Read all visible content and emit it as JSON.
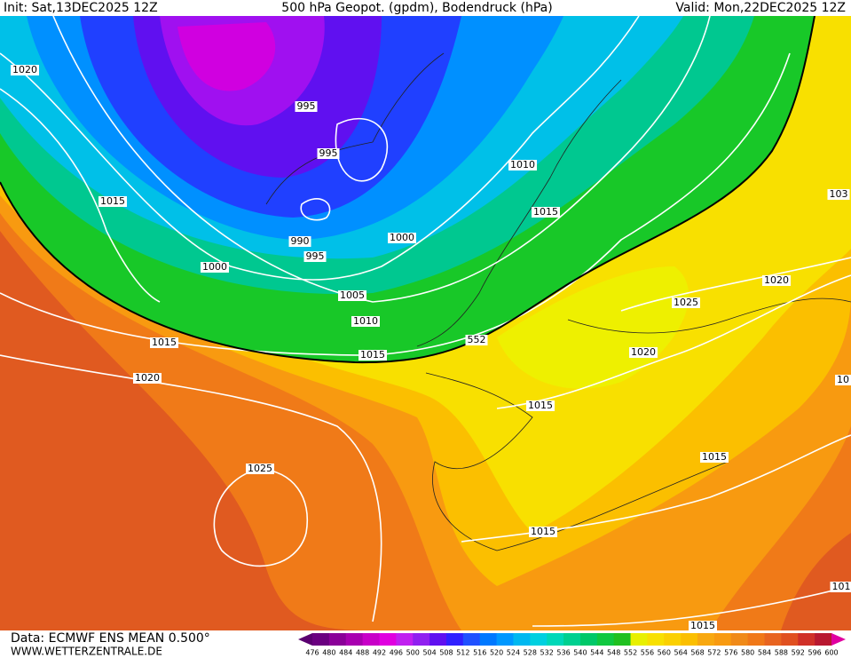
{
  "header": {
    "init": "Init: Sat,13DEC2025 12Z",
    "title": "500 hPa Geopot. (gpdm), Bodendruck (hPa)",
    "valid": "Valid: Mon,22DEC2025 12Z"
  },
  "footer": {
    "data": "Data: ECMWF ENS MEAN 0.500°",
    "site": "WWW.WETTERZENTRALE.DE"
  },
  "isobar_labels": [
    "1020",
    "1015",
    "995",
    "995",
    "990",
    "995",
    "1000",
    "1000",
    "1010",
    "1015",
    "1005",
    "1010",
    "1015",
    "1015",
    "552",
    "1020",
    "1025",
    "1015",
    "1020",
    "1025",
    "1020",
    "1015",
    "1015",
    "1015",
    "103",
    "10",
    "101"
  ],
  "colorbar": {
    "labels": [
      476,
      480,
      484,
      488,
      492,
      496,
      500,
      504,
      508,
      512,
      516,
      520,
      524,
      528,
      532,
      536,
      540,
      544,
      548,
      552,
      556,
      560,
      564,
      568,
      572,
      576,
      580,
      584,
      588,
      592,
      596,
      600
    ],
    "colors": [
      "#5a0070",
      "#6a0080",
      "#8a0098",
      "#a800b0",
      "#c800c8",
      "#e000e0",
      "#c020f0",
      "#9020f0",
      "#6010f0",
      "#3020ff",
      "#2050ff",
      "#0078ff",
      "#0098ff",
      "#00b8f0",
      "#00d0e0",
      "#00d8b8",
      "#00d090",
      "#00c868",
      "#10c840",
      "#20c020",
      "#e8f000",
      "#f8e000",
      "#fbd000",
      "#fbbf00",
      "#f8a810",
      "#f89a10",
      "#f08a18",
      "#f07818",
      "#e86420",
      "#e05020",
      "#d03028",
      "#b81830",
      "#e000a0"
    ]
  }
}
